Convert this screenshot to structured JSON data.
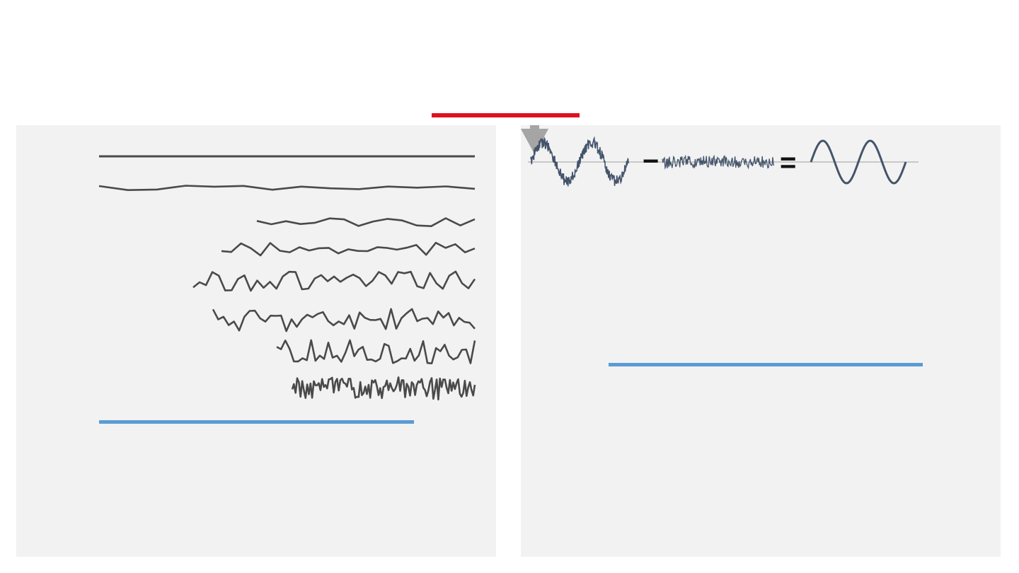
{
  "colors": {
    "accent_red": "#e0101f",
    "accent_blue": "#5b9bd5",
    "panel_bg": "#f2f2f2",
    "series_stroke": "#4a4a4a",
    "arrow_gray": "#a5a5a5",
    "wave_stroke": "#44546a",
    "baseline_gray": "#c8c8c8"
  },
  "left_panel": {
    "series_count": 8
  },
  "right_panel": {
    "arrows": [
      "down-arrow-icon",
      "down-arrow-icon"
    ],
    "equation": {
      "operator_minus": "−",
      "operator_equals": "="
    }
  }
}
